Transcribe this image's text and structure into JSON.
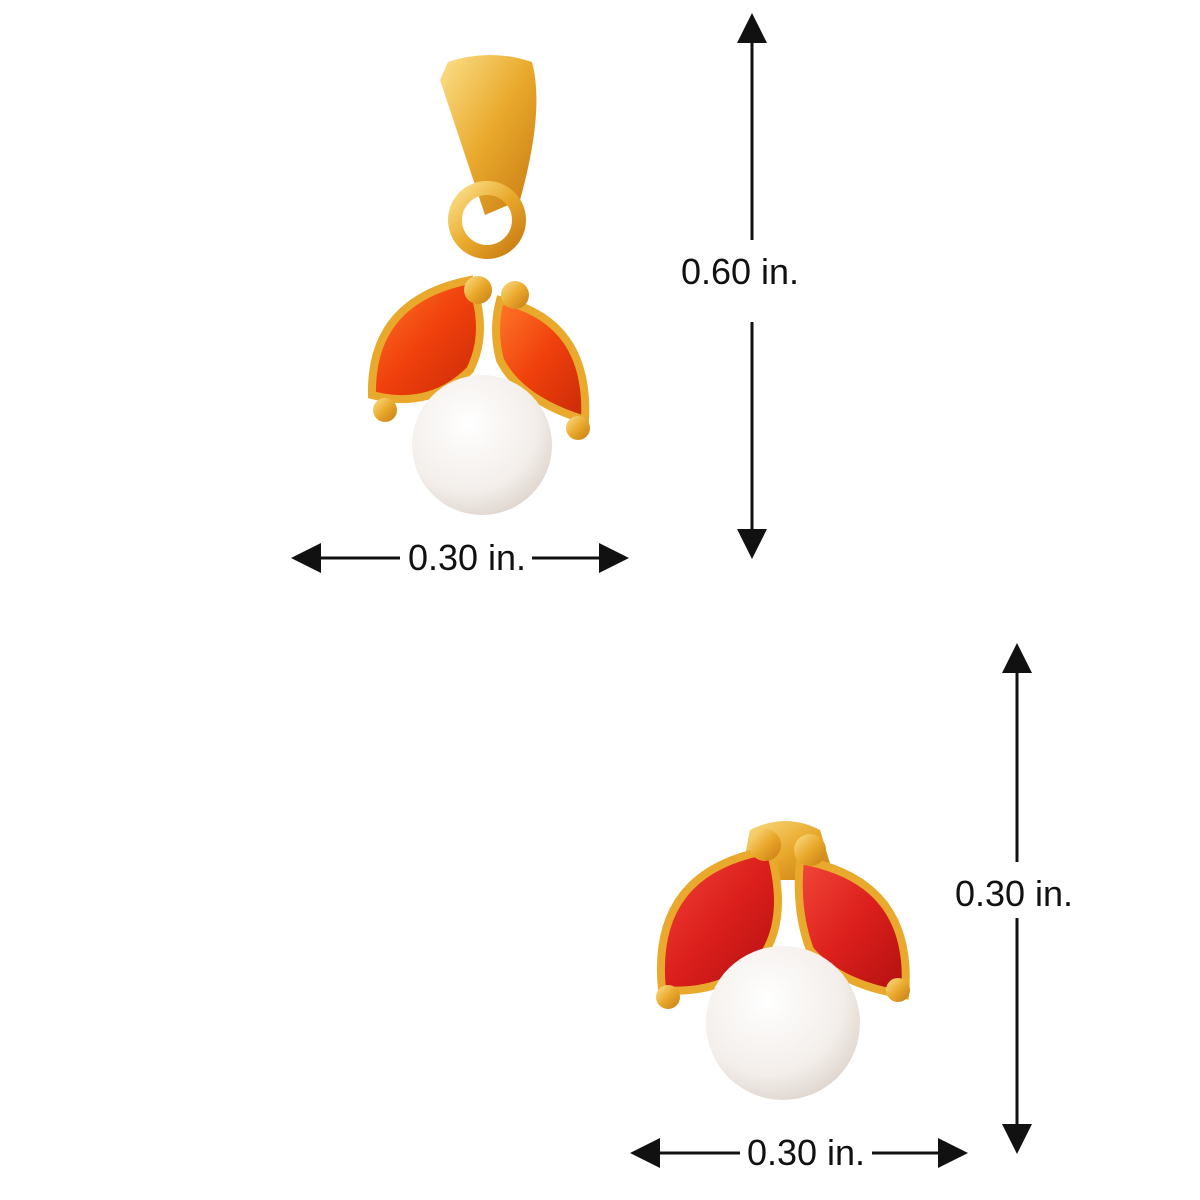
{
  "pendant": {
    "width_label": "0.30 in.",
    "height_label": "0.60 in."
  },
  "earring": {
    "width_label": "0.30 in.",
    "height_label": "0.30 in."
  },
  "colors": {
    "gold": "#e8a52a",
    "stone_pendant": "#f04a10",
    "stone_earring": "#e0241e",
    "pearl": "#f6f2ee",
    "arrow": "#111111"
  }
}
